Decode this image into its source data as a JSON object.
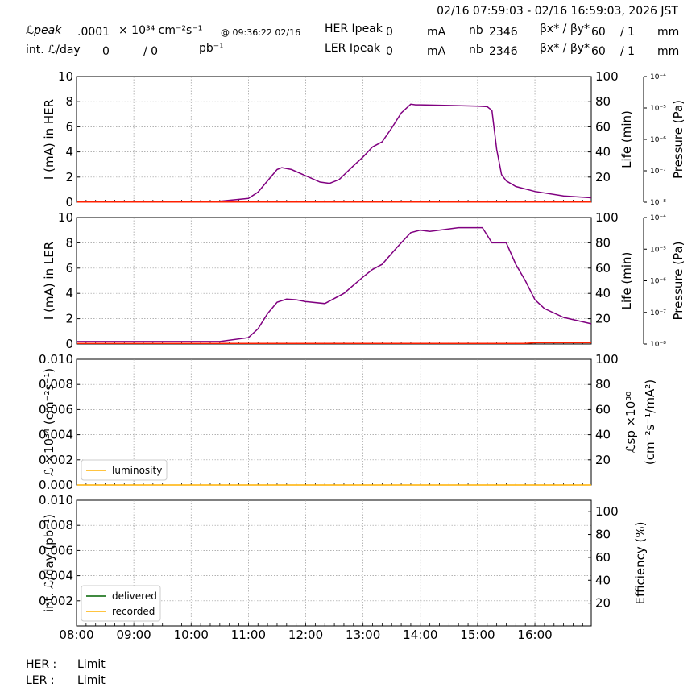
{
  "header": {
    "time_range": "02/16 07:59:03 - 02/16 16:59:03, 2026 JST",
    "lpeak_label": "ℒpeak",
    "lpeak_value": ".0001",
    "lpeak_unit": "× 10³⁴ cm⁻²s⁻¹",
    "lpeak_time": "@ 09:36:22 02/16",
    "intl_label": "int. ℒ/day",
    "intl_value": "0",
    "intl_sep": "/ 0",
    "intl_unit": "pb⁻¹",
    "her_label": "HER Ipeak",
    "her_value": "0",
    "her_unit": "mA",
    "her_nb_label": "nb",
    "her_nb": "2346",
    "her_beta_label": "βx* / βy*",
    "her_beta_x": "60",
    "her_beta_y": "/ 1",
    "her_beta_unit": "mm",
    "ler_label": "LER Ipeak",
    "ler_value": "0",
    "ler_unit": "mA",
    "ler_nb_label": "nb",
    "ler_nb": "2346",
    "ler_beta_label": "βx* / βy*",
    "ler_beta_x": "60",
    "ler_beta_y": "/ 1",
    "ler_beta_unit": "mm"
  },
  "footer": {
    "her_label": "HER :",
    "her_status": "Limit",
    "ler_label": "LER :",
    "ler_status": "Limit"
  },
  "colors": {
    "current": "#800080",
    "life": "#ff2000",
    "luminosity": "#ffb000",
    "delivered": "#006400",
    "recorded": "#ffb000"
  },
  "chart_data": [
    {
      "type": "line",
      "id": "her",
      "ylabel": "I (mA) in HER",
      "ylim": [
        0,
        10
      ],
      "yticks": [
        "0",
        "2",
        "4",
        "6",
        "8",
        "10"
      ],
      "y2label": "Life (min)",
      "y2ticks": [
        "20",
        "40",
        "60",
        "80",
        "100"
      ],
      "y3label": "Pressure (Pa)",
      "y3ticks": [
        "10⁻⁸",
        "10⁻⁷",
        "10⁻⁶",
        "10⁻⁵",
        "10⁻⁴"
      ],
      "grid": true,
      "series": [
        {
          "color": "#800080",
          "x": [
            "08:00",
            "10:00",
            "10:30",
            "11:00",
            "11:10",
            "11:20",
            "11:30",
            "11:35",
            "11:45",
            "12:00",
            "12:15",
            "12:25",
            "12:35",
            "12:50",
            "13:00",
            "13:10",
            "13:20",
            "13:30",
            "13:40",
            "13:50",
            "13:55",
            "14:00",
            "14:30",
            "15:00",
            "15:10",
            "15:15",
            "15:20",
            "15:25",
            "15:30",
            "15:40",
            "16:00",
            "16:30",
            "16:59"
          ],
          "y": [
            0.05,
            0.05,
            0.08,
            0.3,
            0.8,
            1.7,
            2.6,
            2.75,
            2.6,
            2.1,
            1.6,
            1.5,
            1.8,
            2.9,
            3.6,
            4.4,
            4.8,
            5.9,
            7.1,
            7.8,
            7.75,
            7.75,
            7.7,
            7.65,
            7.6,
            7.3,
            4.2,
            2.2,
            1.7,
            1.25,
            0.85,
            0.5,
            0.35
          ]
        },
        {
          "color": "#ff2000",
          "x": [
            "08:00",
            "16:59"
          ],
          "y": [
            0.02,
            0.02
          ]
        }
      ]
    },
    {
      "type": "line",
      "id": "ler",
      "ylabel": "I (mA) in LER",
      "ylim": [
        0,
        10
      ],
      "yticks": [
        "0",
        "2",
        "4",
        "6",
        "8",
        "10"
      ],
      "y2label": "Life (min)",
      "y2ticks": [
        "20",
        "40",
        "60",
        "80",
        "100"
      ],
      "y3label": "Pressure (Pa)",
      "y3ticks": [
        "10⁻⁸",
        "10⁻⁷",
        "10⁻⁶",
        "10⁻⁵",
        "10⁻⁴"
      ],
      "grid": true,
      "series": [
        {
          "color": "#800080",
          "x": [
            "08:00",
            "10:00",
            "10:30",
            "11:00",
            "11:10",
            "11:20",
            "11:30",
            "11:40",
            "11:50",
            "12:00",
            "12:20",
            "12:40",
            "13:00",
            "13:10",
            "13:20",
            "13:35",
            "13:50",
            "14:00",
            "14:10",
            "14:40",
            "15:05",
            "15:10",
            "15:15",
            "15:30",
            "15:40",
            "15:50",
            "16:00",
            "16:10",
            "16:30",
            "16:59"
          ],
          "y": [
            0.2,
            0.2,
            0.2,
            0.5,
            1.2,
            2.4,
            3.3,
            3.55,
            3.5,
            3.35,
            3.2,
            4.0,
            5.3,
            5.9,
            6.3,
            7.6,
            8.8,
            9.0,
            8.9,
            9.2,
            9.2,
            8.6,
            8.0,
            8.0,
            6.3,
            5.0,
            3.5,
            2.8,
            2.1,
            1.6
          ]
        },
        {
          "color": "#ff2000",
          "x": [
            "08:00",
            "15:50",
            "16:00",
            "16:59"
          ],
          "y": [
            0.05,
            0.05,
            0.1,
            0.1
          ]
        }
      ]
    },
    {
      "type": "line",
      "id": "lum",
      "ylabel": "ℒ ×10³⁴ (cm⁻²s⁻¹)",
      "ylim": [
        0,
        0.01
      ],
      "yticks": [
        "0.000",
        "0.002",
        "0.004",
        "0.006",
        "0.008",
        "0.010"
      ],
      "y2label": "ℒsp ×10³⁰ (cm⁻²s⁻¹/mA²)",
      "y2ticks": [
        "20",
        "40",
        "60",
        "80",
        "100"
      ],
      "grid": true,
      "legend": {
        "position": "lower-left",
        "entries": [
          "luminosity"
        ]
      },
      "series": [
        {
          "name": "luminosity",
          "color": "#ffb000",
          "x": [
            "08:00",
            "16:59"
          ],
          "y": [
            0,
            0
          ]
        }
      ]
    },
    {
      "type": "line",
      "id": "intlum",
      "ylabel": "int. ℒ/day (pb⁻¹)",
      "ylim": [
        0,
        0.01
      ],
      "yticks": [
        "0.002",
        "0.004",
        "0.006",
        "0.008",
        "0.010"
      ],
      "y2label": "Efficiency (%)",
      "y2ticks": [
        "20",
        "40",
        "60",
        "80",
        "100"
      ],
      "xticks": [
        "08:00",
        "09:00",
        "10:00",
        "11:00",
        "12:00",
        "13:00",
        "14:00",
        "15:00",
        "16:00"
      ],
      "grid": true,
      "legend": {
        "position": "lower-left",
        "entries": [
          "delivered",
          "recorded"
        ]
      },
      "series": [
        {
          "name": "delivered",
          "color": "#006400",
          "x": [],
          "y": []
        },
        {
          "name": "recorded",
          "color": "#ffb000",
          "x": [],
          "y": []
        }
      ]
    }
  ]
}
